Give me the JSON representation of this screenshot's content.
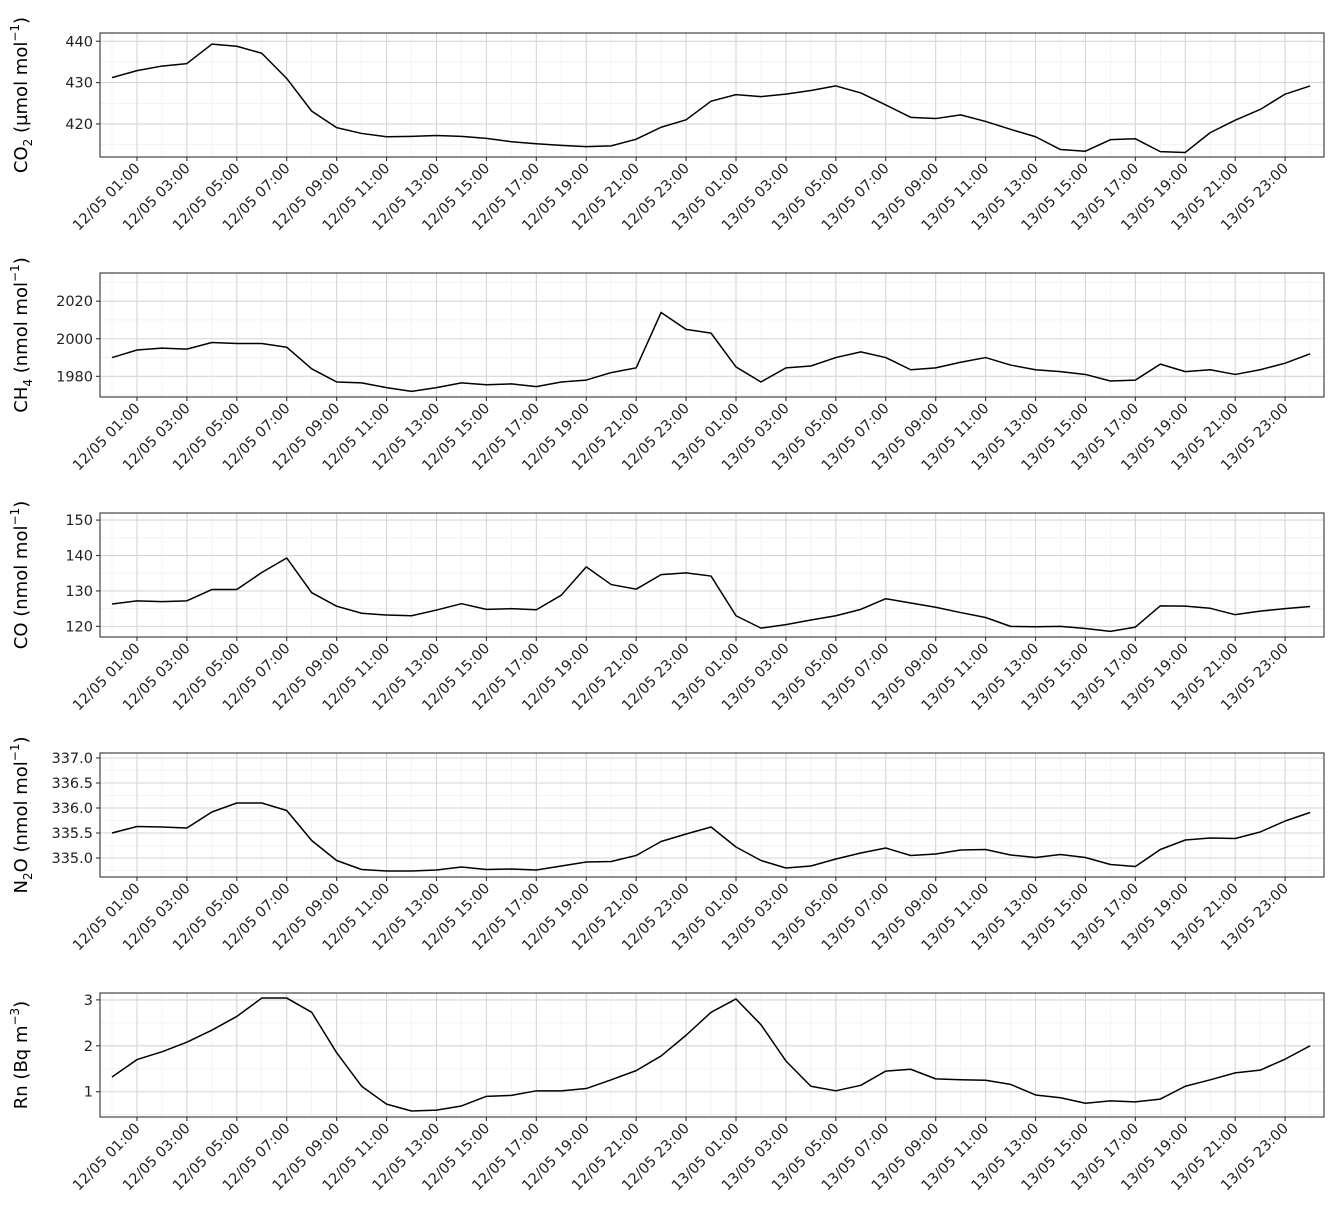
{
  "chart_data": [
    {
      "type": "line",
      "ylabel_main": "CO",
      "ylabel_sub": "2",
      "ylabel_unit": "(µmol mol",
      "ylabel_sup": "−1",
      "ylabel_close": ")",
      "ylim": [
        412,
        442
      ],
      "yticks": [
        420,
        430,
        440
      ],
      "x_start": "12/05 00:30",
      "x_step_hours": 1,
      "values": [
        431.2,
        432.9,
        434.0,
        434.6,
        439.3,
        438.8,
        437.1,
        431.0,
        423.1,
        419.1,
        417.7,
        416.9,
        417.0,
        417.2,
        417.0,
        416.5,
        415.7,
        415.2,
        414.8,
        414.5,
        414.7,
        416.3,
        419.2,
        421.0,
        425.5,
        427.1,
        426.6,
        427.2,
        428.1,
        429.2,
        427.5,
        424.6,
        421.6,
        421.3,
        422.2,
        420.6,
        418.7,
        416.9,
        413.8,
        413.4,
        416.2,
        416.4,
        413.3,
        413.1,
        417.9,
        420.9,
        423.5,
        427.2,
        429.2
      ]
    },
    {
      "type": "line",
      "ylabel_main": "CH",
      "ylabel_sub": "4",
      "ylabel_unit": "(nmol mol",
      "ylabel_sup": "−1",
      "ylabel_close": ")",
      "ylim": [
        1969,
        2035
      ],
      "yticks": [
        1980,
        2000,
        2020
      ],
      "x_start": "12/05 00:30",
      "x_step_hours": 1,
      "values": [
        1990,
        1994,
        1995,
        1994.5,
        1998,
        1997.5,
        1997.5,
        1995.5,
        1984,
        1977,
        1976.5,
        1974,
        1972,
        1974,
        1976.5,
        1975.5,
        1976,
        1974.5,
        1977,
        1978,
        1982,
        1984.5,
        2014,
        2005,
        2003,
        1985,
        1977,
        1984.5,
        1985.5,
        1990,
        1993,
        1990,
        1983.5,
        1984.5,
        1987.5,
        1990,
        1986,
        1983.5,
        1982.5,
        1981,
        1977.5,
        1978,
        1986.5,
        1982.5,
        1983.5,
        1981,
        1983.5,
        1987,
        1992
      ]
    },
    {
      "type": "line",
      "ylabel_main": "CO",
      "ylabel_sub": "",
      "ylabel_unit": "(nmol mol",
      "ylabel_sup": "−1",
      "ylabel_close": ")",
      "ylim": [
        117,
        152
      ],
      "yticks": [
        120,
        130,
        140,
        150
      ],
      "x_start": "12/05 00:30",
      "x_step_hours": 1,
      "values": [
        126.3,
        127.2,
        127.0,
        127.2,
        130.4,
        130.4,
        135.2,
        139.3,
        129.5,
        125.7,
        123.7,
        123.2,
        123.0,
        124.6,
        126.4,
        124.8,
        125.0,
        124.7,
        128.8,
        136.8,
        131.8,
        130.5,
        134.6,
        135.1,
        134.2,
        123.0,
        119.5,
        120.5,
        121.8,
        123.0,
        124.8,
        127.8,
        126.6,
        125.4,
        123.9,
        122.5,
        120.0,
        119.9,
        120.0,
        119.4,
        118.6,
        119.8,
        125.8,
        125.7,
        125.1,
        123.3,
        124.3,
        125.0,
        125.6
      ]
    },
    {
      "type": "line",
      "ylabel_main": "N",
      "ylabel_sub": "2",
      "ylabel_main2": "O",
      "ylabel_unit": "(nmol mol",
      "ylabel_sup": "−1",
      "ylabel_close": ")",
      "ylim": [
        334.62,
        337.1
      ],
      "yticks": [
        335.0,
        335.5,
        336.0,
        336.5,
        337.0
      ],
      "ytick_labels": [
        "335.0",
        "335.5",
        "336.0",
        "336.5",
        "337.0"
      ],
      "x_start": "12/05 00:30",
      "x_step_hours": 1,
      "values": [
        335.5,
        335.63,
        335.62,
        335.6,
        335.92,
        336.1,
        336.1,
        335.95,
        335.35,
        334.95,
        334.77,
        334.74,
        334.74,
        334.76,
        334.82,
        334.77,
        334.78,
        334.76,
        334.84,
        334.92,
        334.93,
        335.05,
        335.33,
        335.48,
        335.62,
        335.22,
        334.95,
        334.8,
        334.84,
        334.98,
        335.1,
        335.2,
        335.05,
        335.08,
        335.16,
        335.17,
        335.06,
        335.01,
        335.07,
        335.01,
        334.87,
        334.83,
        335.17,
        335.36,
        335.4,
        335.39,
        335.52,
        335.74,
        335.91
      ]
    },
    {
      "type": "line",
      "ylabel_main": "Rn",
      "ylabel_sub": "",
      "ylabel_unit": "(Bq m",
      "ylabel_sup": "−3",
      "ylabel_close": ")",
      "ylim": [
        0.45,
        3.15
      ],
      "yticks": [
        1,
        2,
        3
      ],
      "x_start": "12/05 00:30",
      "x_step_hours": 1,
      "values": [
        1.32,
        1.7,
        1.87,
        2.08,
        2.34,
        2.64,
        3.04,
        3.04,
        2.73,
        1.85,
        1.12,
        0.73,
        0.58,
        0.6,
        0.69,
        0.9,
        0.92,
        1.02,
        1.02,
        1.07,
        1.26,
        1.46,
        1.78,
        2.23,
        2.73,
        3.02,
        2.46,
        1.67,
        1.12,
        1.02,
        1.14,
        1.45,
        1.49,
        1.28,
        1.26,
        1.25,
        1.16,
        0.93,
        0.87,
        0.75,
        0.8,
        0.78,
        0.84,
        1.12,
        1.26,
        1.41,
        1.47,
        1.71,
        2.0
      ]
    }
  ],
  "x_tick_labels": [
    "12/05 01:00",
    "12/05 03:00",
    "12/05 05:00",
    "12/05 07:00",
    "12/05 09:00",
    "12/05 11:00",
    "12/05 13:00",
    "12/05 15:00",
    "12/05 17:00",
    "12/05 19:00",
    "12/05 21:00",
    "12/05 23:00",
    "13/05 01:00",
    "13/05 03:00",
    "13/05 05:00",
    "13/05 07:00",
    "13/05 09:00",
    "13/05 11:00",
    "13/05 13:00",
    "13/05 15:00",
    "13/05 17:00",
    "13/05 19:00",
    "13/05 21:00",
    "13/05 23:00"
  ],
  "grid": true
}
